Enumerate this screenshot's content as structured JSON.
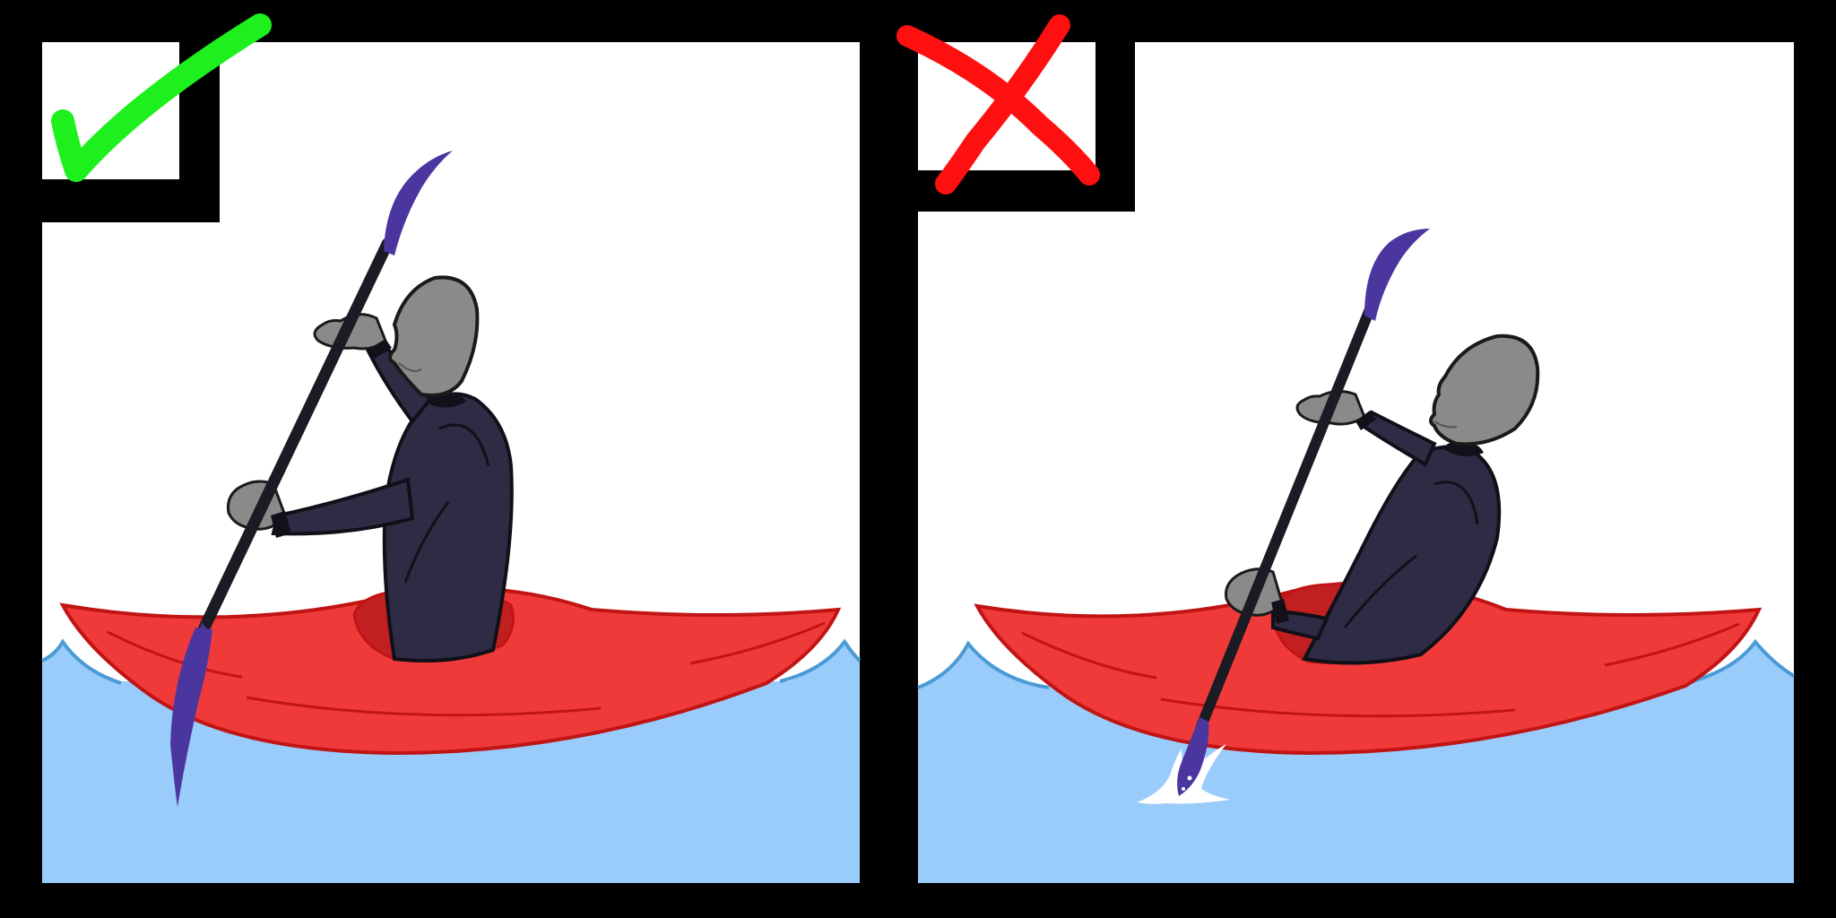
{
  "colors": {
    "background": "#000000",
    "sky": "#ffffff",
    "water": "#99ccfa",
    "water_line": "#4a9ad6",
    "kayak": "#f03a3a",
    "kayak_line": "#c11414",
    "kayak_cockpit": "#c22020",
    "drysuit": "#2e2b45",
    "skin": "#8a8a8a",
    "shaft": "#1b1b24",
    "blade": "#4b36a0",
    "check": "#1ef01e",
    "cross": "#ff1010",
    "splash": "#ffffff"
  },
  "panels": [
    {
      "id": "correct",
      "verdict": "correct",
      "mark_icon": "check-mark-icon",
      "blade_fully_submerged": true
    },
    {
      "id": "incorrect",
      "verdict": "incorrect",
      "mark_icon": "cross-mark-icon",
      "blade_fully_submerged": false
    }
  ]
}
